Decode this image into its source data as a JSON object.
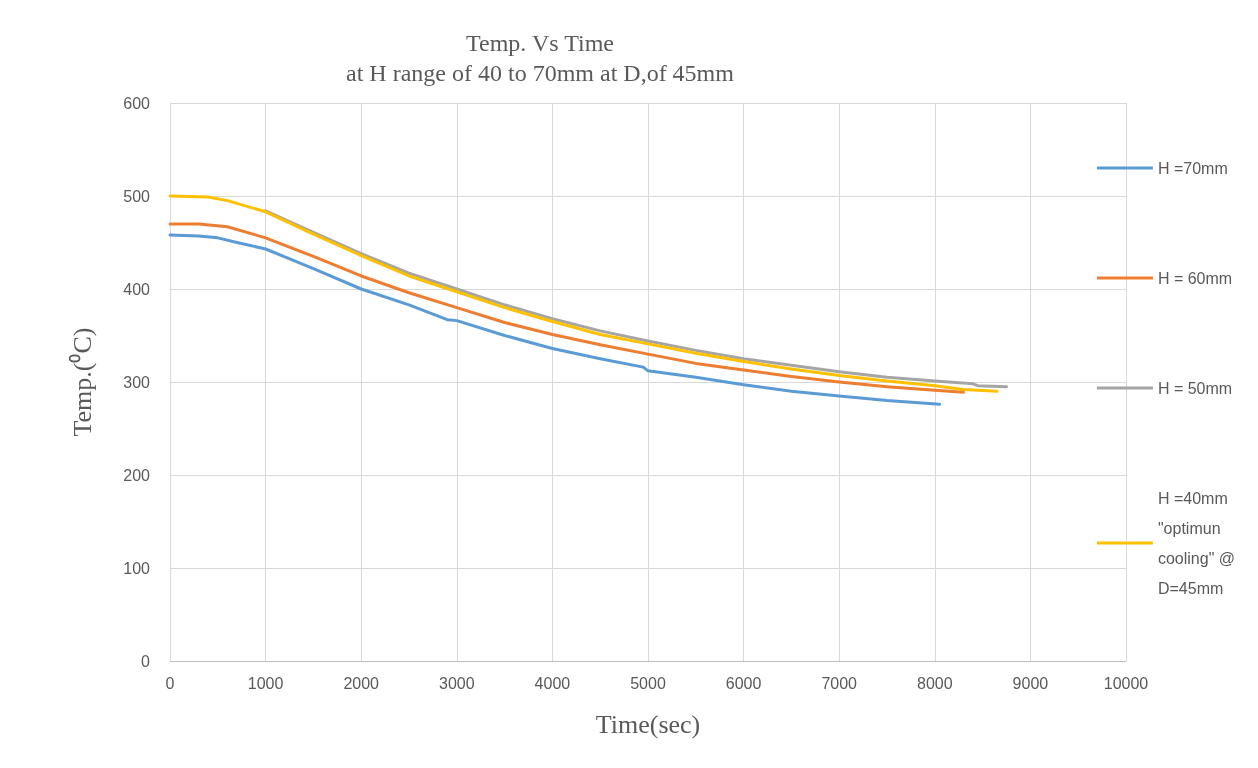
{
  "chart_data": {
    "type": "line",
    "title": "Temp. Vs Time",
    "subtitle": "at H range of 40 to 70mm at D,of 45mm",
    "xlabel": "Time(sec)",
    "ylabel": "Temp.(⁰C)",
    "xlim": [
      0,
      10000
    ],
    "xticks": [
      0,
      1000,
      2000,
      3000,
      4000,
      5000,
      6000,
      7000,
      8000,
      9000,
      10000
    ],
    "ylim": [
      0,
      600
    ],
    "yticks": [
      0,
      100,
      200,
      300,
      400,
      500,
      600
    ],
    "grid": true,
    "legend": "right",
    "marker": "none",
    "line_style": "solid",
    "series": [
      {
        "name": "H =70mm",
        "color": "#5b9bd5",
        "x": [
          0,
          300,
          500,
          700,
          1000,
          1500,
          2000,
          2500,
          2900,
          3000,
          3500,
          4000,
          4500,
          4950,
          5000,
          5500,
          6000,
          6500,
          7000,
          7500,
          8050
        ],
        "values": [
          458,
          457,
          455,
          450,
          443,
          422,
          400,
          383,
          367,
          366,
          350,
          336,
          325,
          316,
          312,
          305,
          297,
          290,
          285,
          280,
          276
        ]
      },
      {
        "name": "H = 60mm",
        "color": "#ed7d31",
        "x": [
          0,
          300,
          600,
          1000,
          1500,
          2000,
          2500,
          3000,
          3500,
          4000,
          4500,
          5000,
          5500,
          6000,
          6500,
          7000,
          7500,
          8000,
          8300
        ],
        "values": [
          470,
          470,
          467,
          455,
          435,
          414,
          396,
          380,
          364,
          351,
          340,
          330,
          320,
          313,
          306,
          300,
          295,
          291,
          289
        ]
      },
      {
        "name": "H = 50mm",
        "color": "#a5a5a5",
        "x": [
          1000,
          1500,
          2000,
          2500,
          3000,
          3500,
          4000,
          4500,
          5000,
          5500,
          6000,
          6500,
          7000,
          7500,
          8000,
          8400,
          8450,
          8750
        ],
        "values": [
          484,
          461,
          438,
          417,
          400,
          383,
          368,
          355,
          344,
          334,
          325,
          318,
          311,
          305,
          301,
          298,
          296,
          295
        ]
      },
      {
        "name": "H =40mm\n\"optimun\ncooling\" @\nD=45mm",
        "color": "#ffc000",
        "x": [
          0,
          400,
          600,
          1000,
          1500,
          2000,
          2500,
          3000,
          3500,
          4000,
          4500,
          5000,
          5500,
          6000,
          6500,
          7000,
          7500,
          8000,
          8300,
          8650
        ],
        "values": [
          500,
          499,
          495,
          483,
          459,
          436,
          414,
          397,
          380,
          365,
          351,
          341,
          331,
          322,
          314,
          307,
          301,
          296,
          292,
          290
        ]
      }
    ]
  }
}
